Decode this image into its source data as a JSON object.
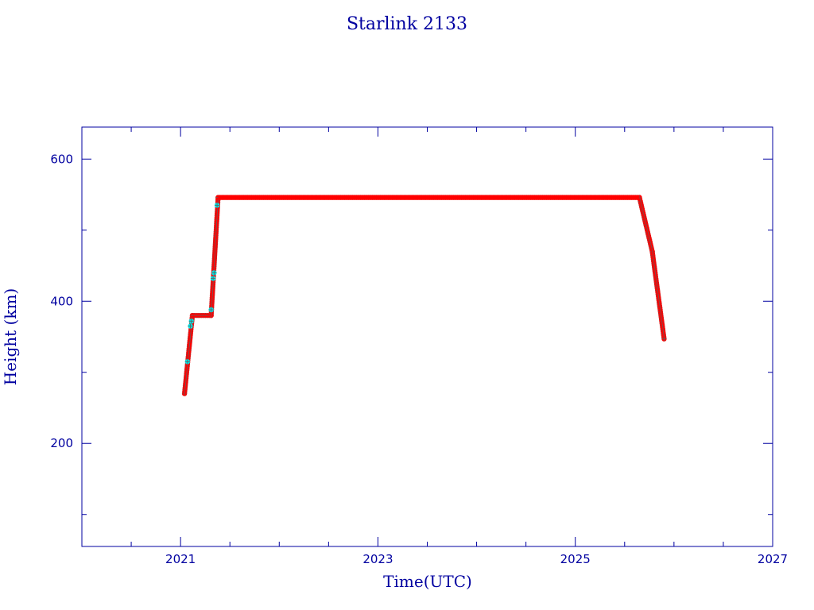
{
  "chart_data": {
    "type": "scatter",
    "title": "Starlink 2133",
    "xlabel": "Time(UTC)",
    "ylabel": "Height (km)",
    "xlim": [
      2020.0,
      2027.0
    ],
    "ylim": [
      55,
      645
    ],
    "x_ticks_major": [
      2021,
      2023,
      2025,
      2027
    ],
    "x_ticks_minor": [
      2020.5,
      2021.5,
      2022,
      2022.5,
      2023.5,
      2024,
      2024.5,
      2025.5,
      2026,
      2026.5
    ],
    "y_ticks_major": [
      200,
      400,
      600
    ],
    "y_ticks_minor": [
      100,
      300,
      500
    ],
    "colors": {
      "axes": "#0000a0",
      "primary": "#ff0000",
      "secondary": "#00e5e5",
      "marker_edge": "#606060"
    },
    "series": [
      {
        "color": "#ff0000",
        "segments": [
          {
            "x": [
              2021.04,
              2021.12
            ],
            "y": [
              270,
              380
            ]
          },
          {
            "x": [
              2021.12,
              2021.31
            ],
            "y": [
              380,
              380
            ]
          },
          {
            "x": [
              2021.31,
              2021.38
            ],
            "y": [
              380,
              545
            ]
          },
          {
            "x": [
              2021.38,
              2025.65
            ],
            "y": [
              546,
              546
            ]
          },
          {
            "x": [
              2025.65,
              2025.78
            ],
            "y": [
              546,
              470
            ]
          },
          {
            "x": [
              2025.78,
              2025.9
            ],
            "y": [
              470,
              347
            ]
          }
        ]
      },
      {
        "color": "#00e5e5",
        "points": [
          {
            "x": 2021.07,
            "y": 315
          },
          {
            "x": 2021.1,
            "y": 365
          },
          {
            "x": 2021.11,
            "y": 372
          },
          {
            "x": 2021.31,
            "y": 388
          },
          {
            "x": 2021.33,
            "y": 432
          },
          {
            "x": 2021.34,
            "y": 440
          },
          {
            "x": 2021.37,
            "y": 535
          }
        ]
      }
    ]
  }
}
